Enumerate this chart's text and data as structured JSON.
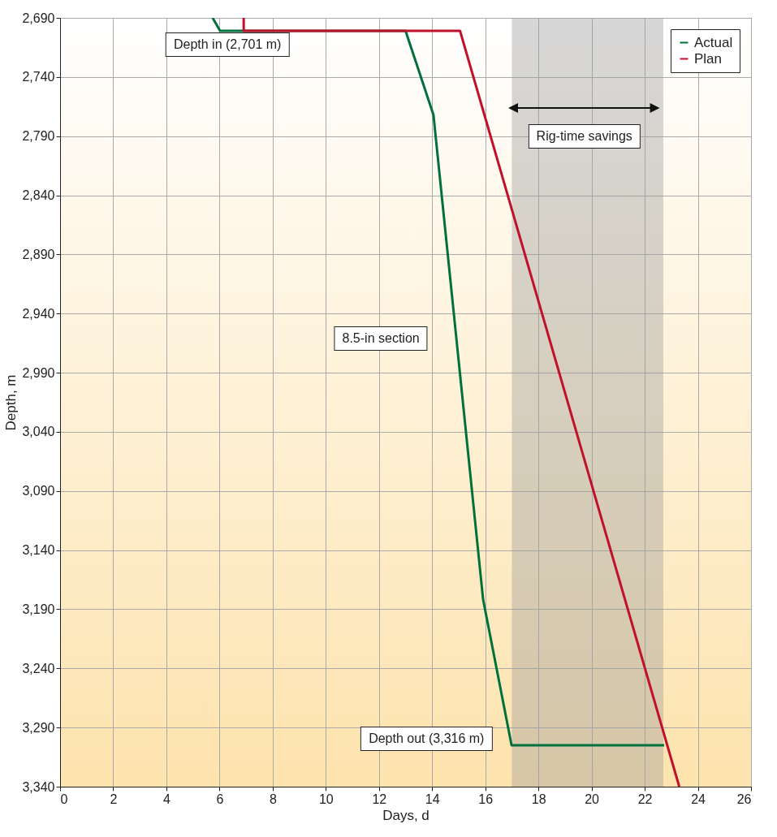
{
  "chart_data": {
    "type": "line",
    "xlabel": "Days, d",
    "ylabel": "Depth, m",
    "series": [
      {
        "name": "Actual",
        "color": "#00703c",
        "x": [
          5.74,
          6.02,
          13.0,
          14.05,
          15.92,
          16.99,
          22.73
        ],
        "values": [
          2690,
          2701,
          2701,
          2772,
          3182,
          3305,
          3305
        ]
      },
      {
        "name": "Plan",
        "color": "#c0102a",
        "x": [
          6.91,
          6.91,
          15.05,
          23.3
        ],
        "values": [
          2690,
          2701,
          2701,
          3340
        ]
      }
    ],
    "xlim": [
      0,
      26
    ],
    "xticks": [
      0,
      2,
      4,
      6,
      8,
      10,
      12,
      14,
      16,
      18,
      20,
      22,
      24,
      26
    ],
    "ylim": [
      3340,
      2690
    ],
    "yticks": [
      {
        "value": 2690,
        "label": "2,690"
      },
      {
        "value": 2740,
        "label": "2,740"
      },
      {
        "value": 2790,
        "label": "2,790"
      },
      {
        "value": 2840,
        "label": "2,840"
      },
      {
        "value": 2890,
        "label": "2,890"
      },
      {
        "value": 2940,
        "label": "2,940"
      },
      {
        "value": 2990,
        "label": "2,990"
      },
      {
        "value": 3040,
        "label": "3,040"
      },
      {
        "value": 3090,
        "label": "3,090"
      },
      {
        "value": 3140,
        "label": "3,140"
      },
      {
        "value": 3190,
        "label": "3,190"
      },
      {
        "value": 3240,
        "label": "3,240"
      },
      {
        "value": 3290,
        "label": "3,290"
      },
      {
        "value": 3340,
        "label": "3,340"
      }
    ],
    "bands": [
      {
        "axis": "x",
        "from": 17.0,
        "to": 22.7,
        "label": "Rig-time savings",
        "color": "#9a9a9a"
      }
    ],
    "annotations": [
      "Depth in (2,701 m)",
      "8.5-in section",
      "Depth out (3,316 m)"
    ],
    "grid": true,
    "legend": "top right",
    "line_style": "solid",
    "marker": "none"
  }
}
